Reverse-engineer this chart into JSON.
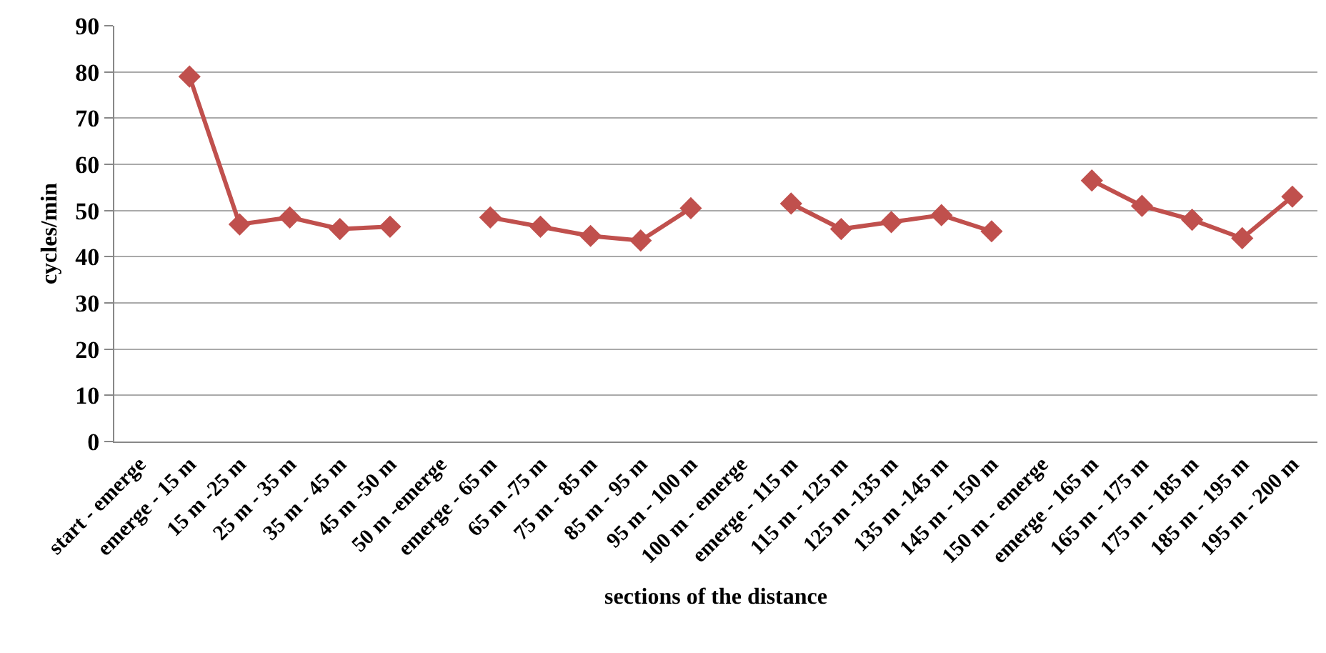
{
  "chart_data": {
    "type": "line",
    "xlabel": "sections of the distance",
    "ylabel": "cycles/min",
    "categories": [
      "start - emerge",
      "emerge - 15 m",
      "15 m -25 m",
      "25 m - 35 m",
      "35 m - 45 m",
      "45 m -50 m",
      "50 m -emerge",
      "emerge - 65 m",
      "65 m -75 m",
      "75 m - 85 m",
      "85 m - 95 m",
      "95 m - 100 m",
      "100 m - emerge",
      "emerge - 115 m",
      "115 m - 125 m",
      "125 m -135 m",
      "135 m -145 m",
      "145 m - 150 m",
      "150 m - emerge",
      "emerge - 165 m",
      "165 m - 175 m",
      "175 m - 185 m",
      "185 m - 195 m",
      "195 m - 200 m"
    ],
    "series": [
      {
        "color": "#c0504d",
        "values": [
          null,
          79,
          47,
          48.5,
          46,
          46.5,
          null,
          48.5,
          46.5,
          44.5,
          43.5,
          50.5,
          null,
          51.5,
          46,
          47.5,
          49,
          45.5,
          null,
          56.5,
          51,
          48,
          44,
          53
        ]
      }
    ],
    "ylim": [
      0,
      90
    ],
    "yticks": [
      0,
      10,
      20,
      30,
      40,
      50,
      60,
      70,
      80,
      90
    ],
    "grid": "y",
    "marker": "diamond",
    "line_style": "solid"
  }
}
